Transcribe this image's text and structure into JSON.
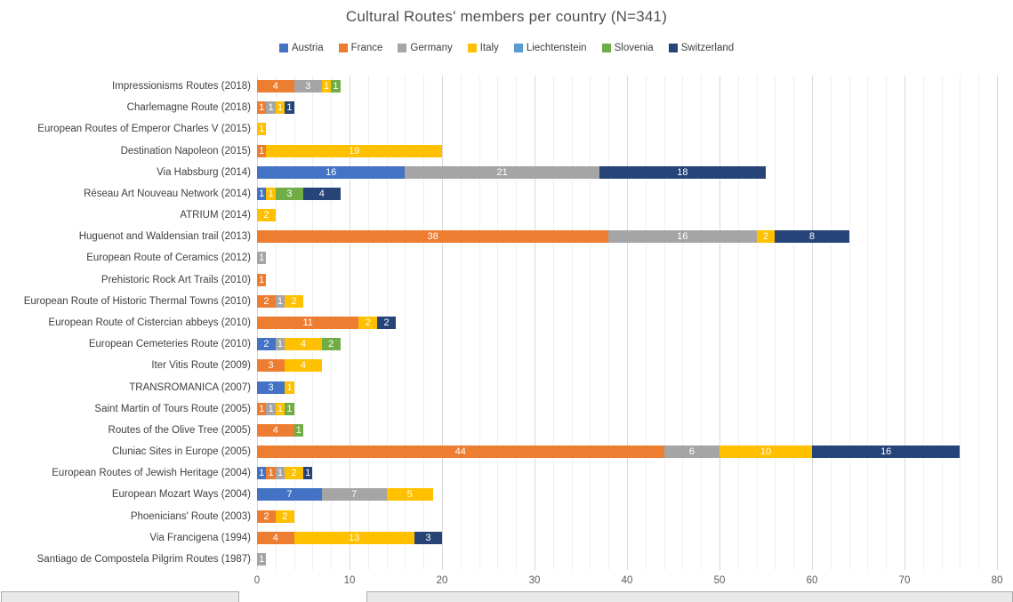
{
  "chart_data": {
    "type": "bar",
    "stacked": true,
    "orientation": "horizontal",
    "title": "Cultural Routes' members per country (N=341)",
    "legend_position": "top",
    "grid": "on",
    "xlabel": "",
    "ylabel": "",
    "xlim": [
      0,
      80
    ],
    "x_ticks": [
      0,
      10,
      20,
      30,
      40,
      50,
      60,
      70,
      80
    ],
    "minor_grid_step": 2,
    "categories": [
      "Impressionisms Routes (2018)",
      "Charlemagne Route (2018)",
      "European Routes of Emperor Charles V (2015)",
      "Destination Napoleon (2015)",
      "Via Habsburg (2014)",
      "Réseau Art Nouveau Network (2014)",
      "ATRIUM (2014)",
      "Huguenot and Waldensian trail (2013)",
      "European Route of Ceramics (2012)",
      "Prehistoric Rock Art Trails (2010)",
      "European Route of Historic Thermal Towns (2010)",
      "European Route of Cistercian abbeys (2010)",
      "European Cemeteries Route (2010)",
      "Iter Vitis Route (2009)",
      "TRANSROMANICA (2007)",
      "Saint Martin of Tours Route (2005)",
      "Routes of the Olive Tree (2005)",
      "Cluniac Sites in Europe (2005)",
      "European Routes of Jewish Heritage (2004)",
      "European Mozart Ways (2004)",
      "Phoenicians' Route (2003)",
      "Via Francigena (1994)",
      "Santiago de Compostela Pilgrim Routes (1987)"
    ],
    "series": [
      {
        "name": "Austria",
        "color": "#4472C4",
        "values": [
          0,
          0,
          0,
          0,
          16,
          1,
          0,
          0,
          0,
          0,
          0,
          0,
          2,
          0,
          3,
          0,
          0,
          0,
          1,
          7,
          0,
          0,
          0
        ]
      },
      {
        "name": "France",
        "color": "#ED7D31",
        "values": [
          4,
          1,
          0,
          1,
          0,
          0,
          0,
          38,
          0,
          1,
          2,
          11,
          0,
          3,
          0,
          1,
          4,
          44,
          1,
          0,
          2,
          4,
          0
        ]
      },
      {
        "name": "Germany",
        "color": "#A5A5A5",
        "values": [
          3,
          1,
          0,
          0,
          21,
          0,
          0,
          16,
          1,
          0,
          1,
          0,
          1,
          0,
          0,
          1,
          0,
          6,
          1,
          7,
          0,
          0,
          1
        ]
      },
      {
        "name": "Italy",
        "color": "#FFC000",
        "values": [
          1,
          1,
          1,
          19,
          0,
          1,
          2,
          2,
          0,
          0,
          2,
          2,
          4,
          4,
          1,
          1,
          0,
          10,
          2,
          5,
          2,
          13,
          0
        ]
      },
      {
        "name": "Liechtenstein",
        "color": "#5B9BD5",
        "values": [
          0,
          0,
          0,
          0,
          0,
          0,
          0,
          0,
          0,
          0,
          0,
          0,
          0,
          0,
          0,
          0,
          0,
          0,
          0,
          0,
          0,
          0,
          0
        ]
      },
      {
        "name": "Slovenia",
        "color": "#70AD47",
        "values": [
          1,
          0,
          0,
          0,
          0,
          3,
          0,
          0,
          0,
          0,
          0,
          0,
          2,
          0,
          0,
          1,
          1,
          0,
          0,
          0,
          0,
          0,
          0
        ]
      },
      {
        "name": "Switzerland",
        "color": "#264478",
        "values": [
          0,
          1,
          0,
          0,
          18,
          4,
          0,
          8,
          0,
          0,
          0,
          2,
          0,
          0,
          0,
          0,
          0,
          16,
          1,
          0,
          0,
          3,
          0
        ]
      }
    ]
  }
}
